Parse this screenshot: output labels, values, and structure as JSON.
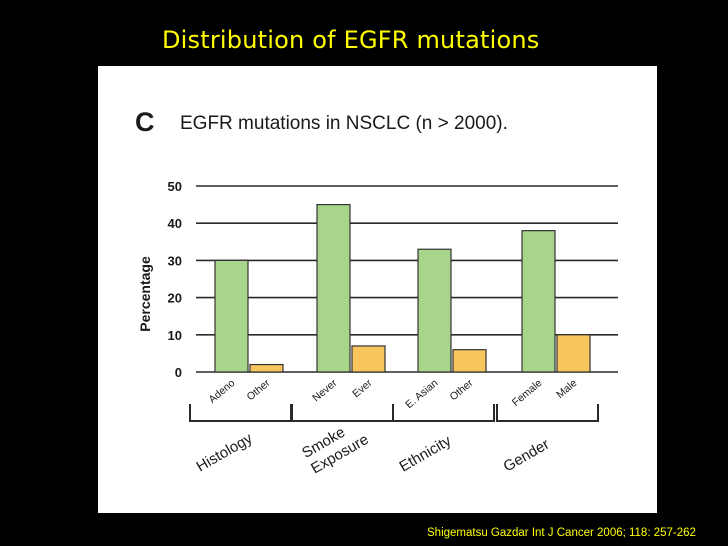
{
  "slide": {
    "title": "Distribution of EGFR mutations",
    "citation": "Shigematsu Gazdar Int J Cancer 2006; 118: 257-262"
  },
  "chart_data": {
    "type": "bar",
    "panel_label": "C",
    "title": "EGFR mutations in NSCLC (n > 2000).",
    "ylabel": "Percentage",
    "ylim": [
      0,
      50
    ],
    "yticks": [
      0,
      10,
      20,
      30,
      40,
      50
    ],
    "grid": true,
    "groups": [
      {
        "label": [
          "Histology"
        ],
        "bars": [
          {
            "category": "Adeno",
            "value": 30,
            "color": "#a8d48c"
          },
          {
            "category": "Other",
            "value": 2,
            "color": "#f9c65e"
          }
        ]
      },
      {
        "label": [
          "Smoke",
          "Exposure"
        ],
        "bars": [
          {
            "category": "Never",
            "value": 45,
            "color": "#a8d48c"
          },
          {
            "category": "Ever",
            "value": 7,
            "color": "#f9c65e"
          }
        ]
      },
      {
        "label": [
          "Ethnicity"
        ],
        "bars": [
          {
            "category": "E. Asian",
            "value": 33,
            "color": "#a8d48c"
          },
          {
            "category": "Other",
            "value": 6,
            "color": "#f9c65e"
          }
        ]
      },
      {
        "label": [
          "Gender"
        ],
        "bars": [
          {
            "category": "Female",
            "value": 38,
            "color": "#a8d48c"
          },
          {
            "category": "Male",
            "value": 10,
            "color": "#f9c65e"
          }
        ]
      }
    ]
  }
}
